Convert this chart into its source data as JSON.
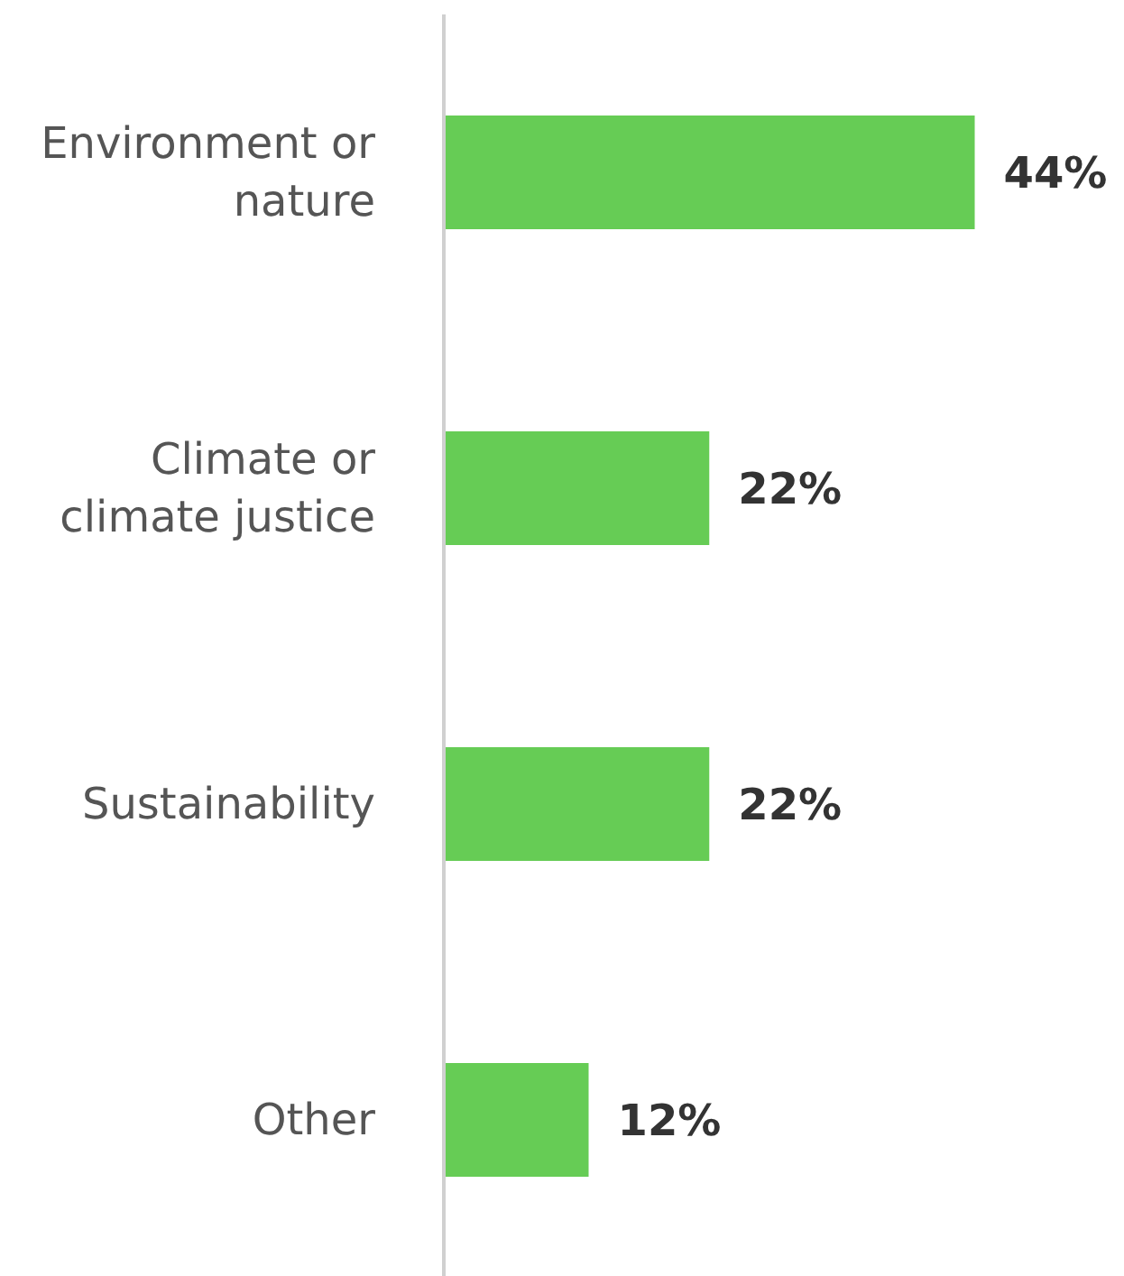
{
  "chart_data": {
    "type": "bar",
    "orientation": "horizontal",
    "categories": [
      "Environment or nature",
      "Climate or climate justice",
      "Sustainability",
      "Other"
    ],
    "values": [
      44,
      22,
      22,
      12
    ],
    "value_labels": [
      "44%",
      "22%",
      "22%",
      "12%"
    ],
    "color": "#66cc55"
  }
}
